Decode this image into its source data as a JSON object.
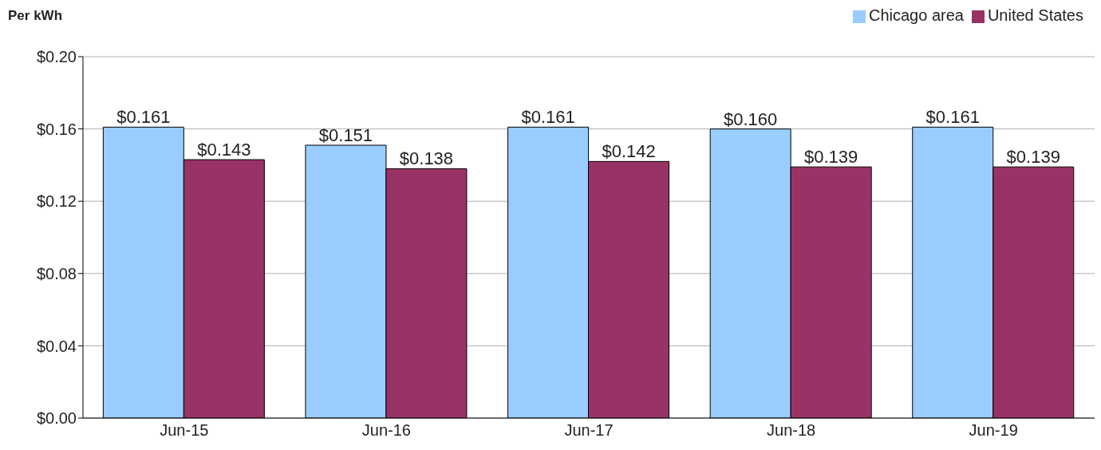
{
  "chart_data": {
    "type": "bar",
    "ylabel": "Per kWh",
    "categories": [
      "Jun-15",
      "Jun-16",
      "Jun-17",
      "Jun-18",
      "Jun-19"
    ],
    "series": [
      {
        "name": "Chicago area",
        "color": "#99ccff",
        "values": [
          0.161,
          0.151,
          0.161,
          0.16,
          0.161
        ],
        "value_labels": [
          "$0.161",
          "$0.151",
          "$0.161",
          "$0.160",
          "$0.161"
        ]
      },
      {
        "name": "United States",
        "color": "#993366",
        "values": [
          0.143,
          0.138,
          0.142,
          0.139,
          0.139
        ],
        "value_labels": [
          "$0.143",
          "$0.138",
          "$0.142",
          "$0.139",
          "$0.139"
        ]
      }
    ],
    "ylim": [
      0,
      0.2
    ],
    "yticks": [
      {
        "value": 0,
        "label": "$0.00"
      },
      {
        "value": 0.04,
        "label": "$0.04"
      },
      {
        "value": 0.08,
        "label": "$0.08"
      },
      {
        "value": 0.12,
        "label": "$0.12"
      },
      {
        "value": 0.16,
        "label": "$0.16"
      },
      {
        "value": 0.2,
        "label": "$0.20"
      }
    ],
    "grid": "y",
    "legend": "top right"
  }
}
